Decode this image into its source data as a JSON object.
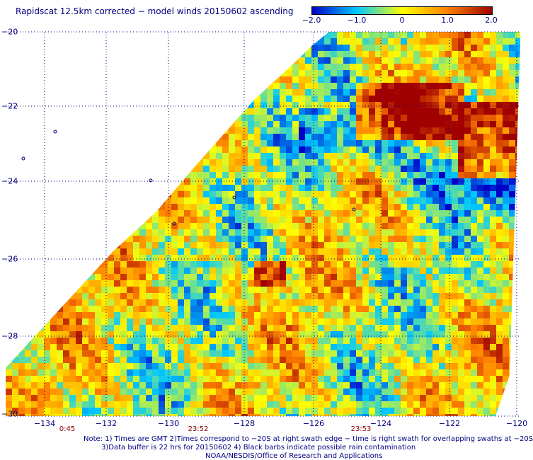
{
  "title": "Rapidscat 12.5km corrected − model winds 20150602 ascending",
  "colorbar": {
    "ticks": [
      "−2.0",
      "−1.0",
      "0",
      "1.0",
      "2.0"
    ],
    "tick_values": [
      -2.0,
      -1.0,
      0,
      1.0,
      2.0
    ],
    "range": [
      -2.0,
      2.0
    ],
    "colors": [
      "#0000c8",
      "#00c8ff",
      "#ffff00",
      "#ff8000",
      "#a00000"
    ]
  },
  "lat_labels": [
    "−20",
    "−22",
    "−24",
    "−26",
    "−28",
    "−30"
  ],
  "lon_labels": [
    "−134",
    "−132",
    "−130",
    "−128",
    "−126",
    "−124",
    "−122",
    "−120"
  ],
  "time_labels": [
    "0:45",
    "23:52",
    "23:53"
  ],
  "notes": [
    "Note: 1) Times are GMT 2)Times correspond to −20S at right swath edge − time is right swath for overlapping swaths at −20S",
    "3)Data buffer is 22 hrs for 20150602 4) Black barbs indicate possible rain contamination",
    "NOAA/NESDIS/Office of Research and Applications"
  ]
}
